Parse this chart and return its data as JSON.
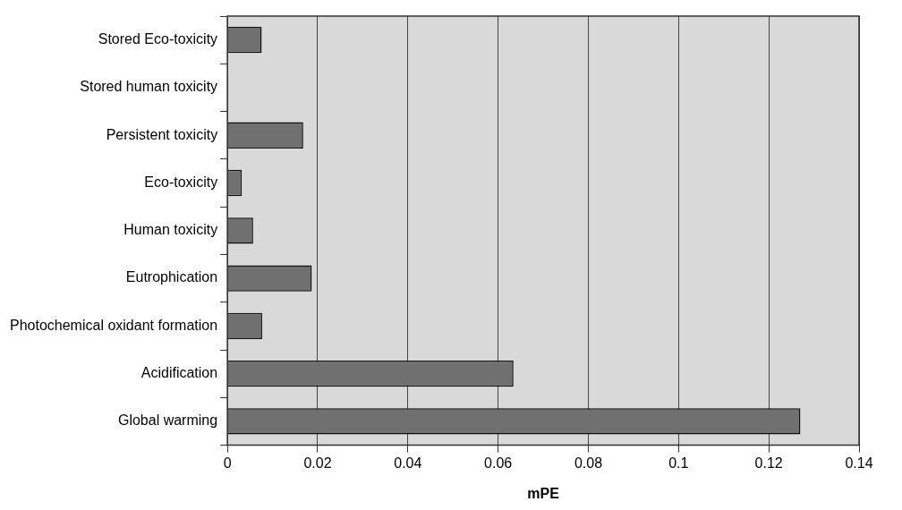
{
  "chart_data": {
    "type": "bar",
    "orientation": "horizontal",
    "xlabel": "mPE",
    "categories": [
      "Stored Eco-toxicity",
      "Stored human toxicity",
      "Persistent toxicity",
      "Eco-toxicity",
      "Human toxicity",
      "Eutrophication",
      "Photochemical oxidant formation",
      "Acidification",
      "Global warming"
    ],
    "values": [
      0.0076,
      0.0002,
      0.0168,
      0.0032,
      0.0057,
      0.0187,
      0.0077,
      0.0634,
      0.127
    ],
    "color": "#707070",
    "xlim": [
      0,
      0.14
    ],
    "xticks": [
      0,
      0.02,
      0.04,
      0.06,
      0.08,
      0.1,
      0.12,
      0.14
    ],
    "grid": "x",
    "legend": false
  }
}
